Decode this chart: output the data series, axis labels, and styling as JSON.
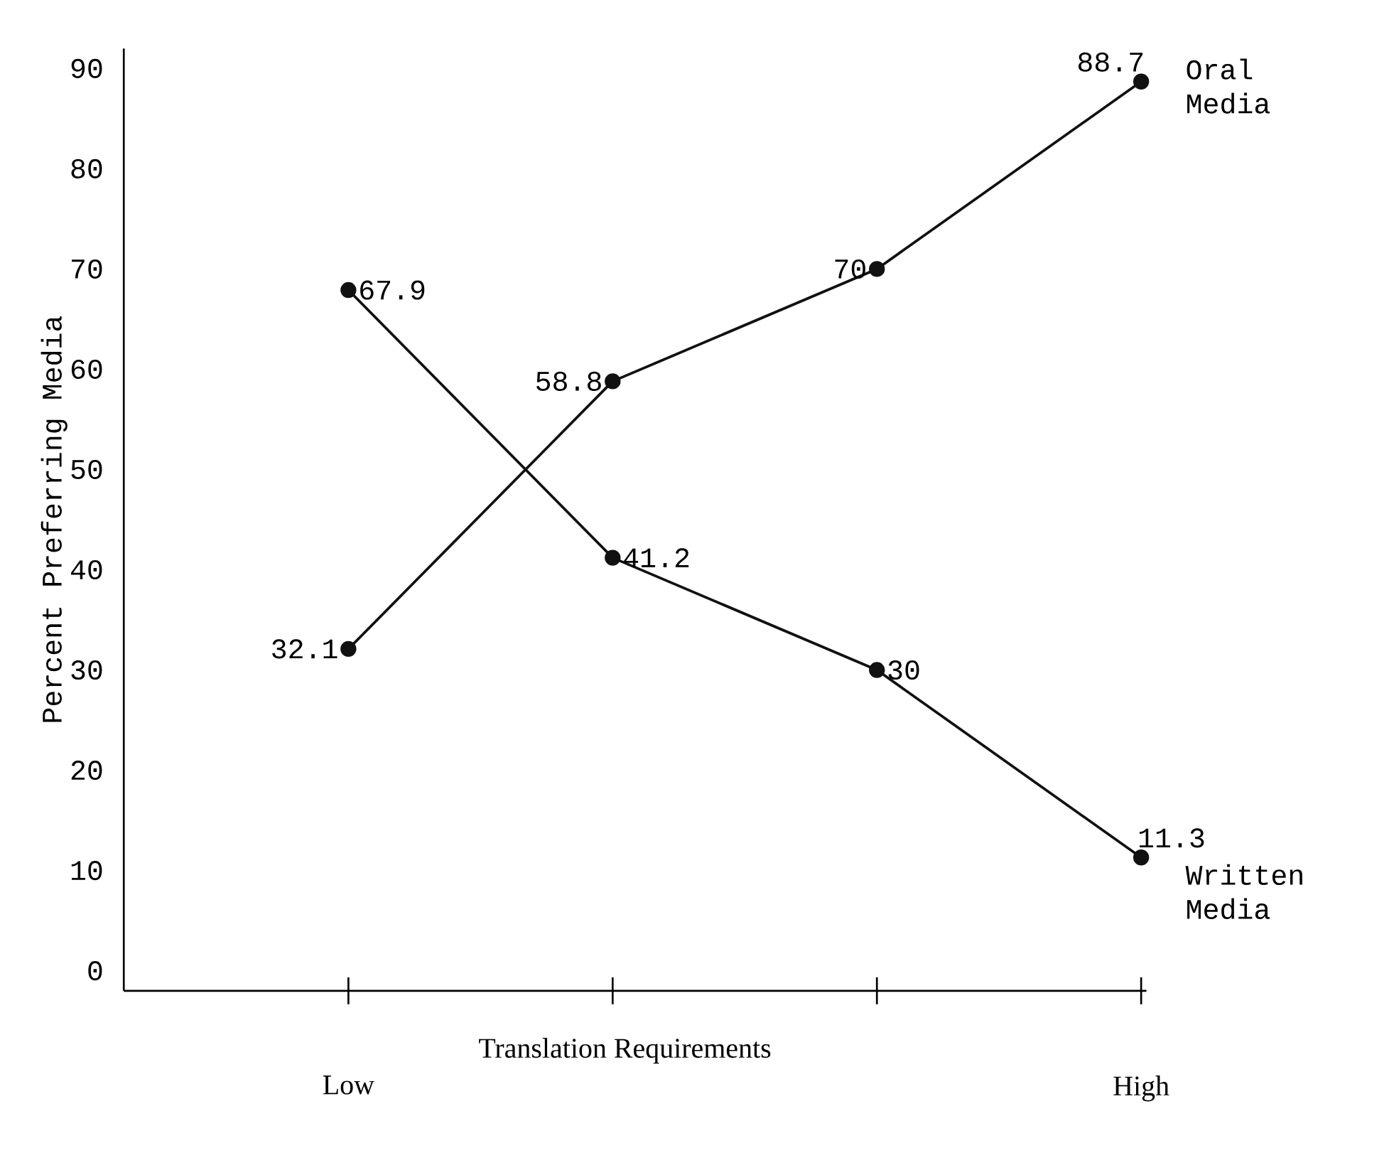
{
  "chart_data": {
    "type": "line",
    "xlabel": "Translation Requirements",
    "ylabel": "Percent Preferring Media",
    "categories": [
      "Low",
      null,
      null,
      "High"
    ],
    "series": [
      {
        "name": "Oral Media",
        "color": "#111111",
        "values": [
          32.1,
          58.8,
          70,
          88.7
        ]
      },
      {
        "name": "Written Media",
        "color": "#111111",
        "values": [
          67.9,
          41.2,
          30,
          11.3
        ]
      }
    ],
    "ylim": [
      -2,
      92
    ],
    "yticks": [
      0,
      10,
      20,
      30,
      40,
      50,
      60,
      70,
      80,
      90
    ],
    "data_labels": true,
    "marker": "circle",
    "line_style": "solid",
    "grid": false
  }
}
